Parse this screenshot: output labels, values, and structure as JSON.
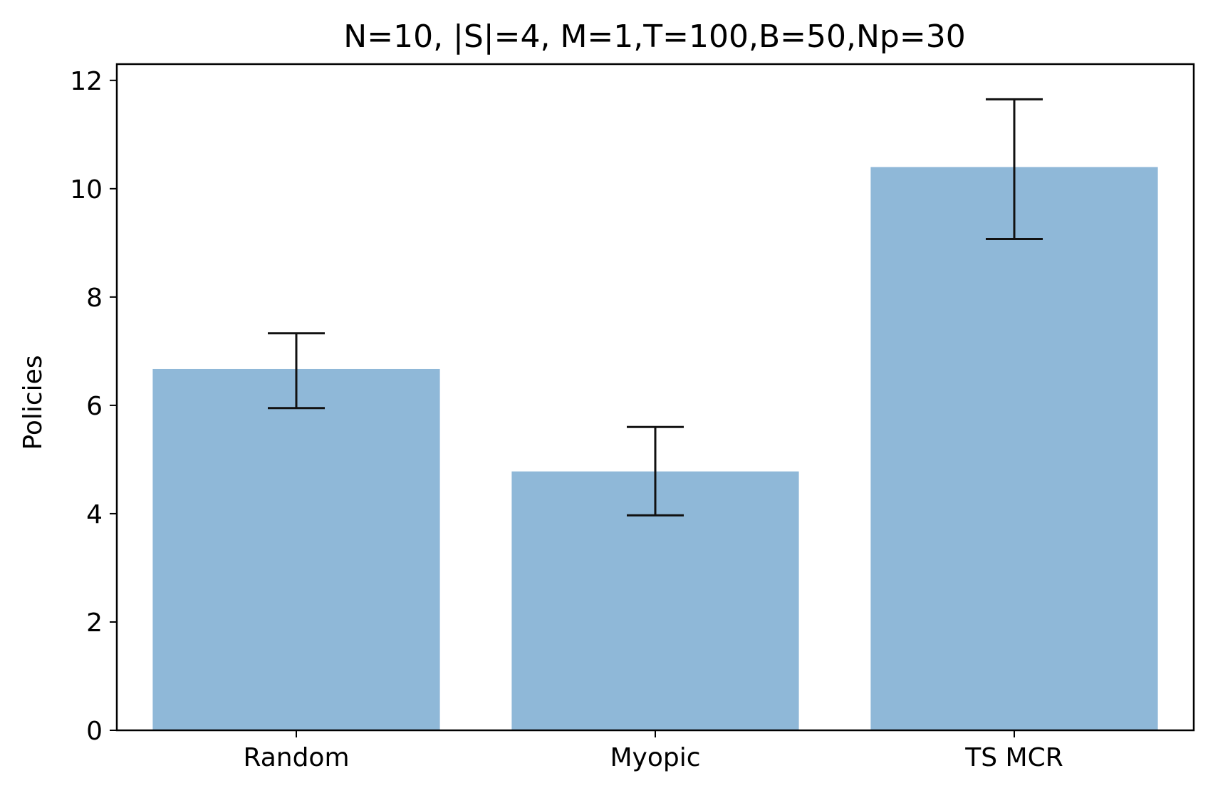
{
  "chart_data": {
    "type": "bar",
    "title": "N=10, |S|=4, M=1,T=100,B=50,Np=30",
    "xlabel": "",
    "ylabel": "Policies",
    "categories": [
      "Random",
      "Myopic",
      "TS MCR"
    ],
    "values": [
      6.67,
      4.78,
      10.4
    ],
    "error_low": [
      5.95,
      3.97,
      9.07
    ],
    "error_high": [
      7.33,
      5.6,
      11.65
    ],
    "ylim": [
      0,
      12.3
    ],
    "yticks": [
      0,
      2,
      4,
      6,
      8,
      10,
      12
    ],
    "ytick_labels": [
      "0",
      "2",
      "4",
      "6",
      "8",
      "10",
      "12"
    ],
    "grid": false,
    "legend": "none",
    "colors": {
      "bar": "#8fb8d8",
      "error_bar": "#111111",
      "axis": "#000000"
    }
  }
}
